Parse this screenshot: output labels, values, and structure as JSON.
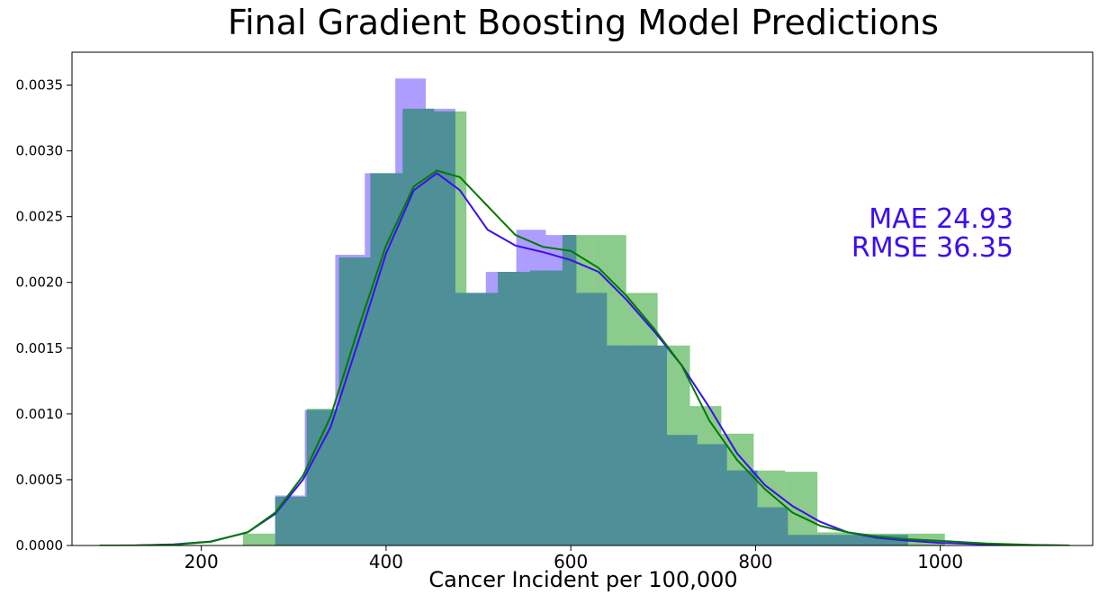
{
  "chart_data": {
    "type": "bar",
    "title": "Final Gradient Boosting Model Predictions",
    "xlabel": "Cancer Incident per 100,000",
    "ylabel": "",
    "xlim": [
      60,
      1165
    ],
    "ylim": [
      0,
      0.00375
    ],
    "x_ticks": [
      200,
      400,
      600,
      800,
      1000
    ],
    "x_tick_labels": [
      "200",
      "400",
      "600",
      "800",
      "1000"
    ],
    "y_ticks": [
      0,
      0.0005,
      0.001,
      0.0015,
      0.002,
      0.0025,
      0.003,
      0.0035
    ],
    "y_tick_labels": [
      "0.0000",
      "0.0005",
      "0.0010",
      "0.0015",
      "0.0020",
      "0.0025",
      "0.0030",
      "0.0035"
    ],
    "grid": false,
    "series": [
      {
        "color": "#6a4cff",
        "bin_edges": [
          280,
          312,
          345,
          377,
          410,
          443,
          475,
          508,
          541,
          573,
          606,
          639,
          671,
          704,
          737,
          769,
          802,
          835,
          867,
          900,
          933,
          965,
          998
        ],
        "values": [
          0.00038,
          0.00103,
          0.00221,
          0.00283,
          0.00355,
          0.00332,
          0.00192,
          0.00208,
          0.0024,
          0.00236,
          0.00192,
          0.00152,
          0.00152,
          0.00084,
          0.00077,
          0.00057,
          0.00029,
          8e-05,
          8e-05,
          8e-05,
          8e-05,
          0.0,
          0.0
        ],
        "kde": [
          [
            90,
            0.0
          ],
          [
            130,
            1e-06
          ],
          [
            170,
            8e-06
          ],
          [
            210,
            3e-05
          ],
          [
            250,
            0.0001
          ],
          [
            280,
            0.00024
          ],
          [
            310,
            0.0005
          ],
          [
            340,
            0.0009
          ],
          [
            370,
            0.00155
          ],
          [
            400,
            0.00222
          ],
          [
            430,
            0.0027
          ],
          [
            455,
            0.00283
          ],
          [
            480,
            0.0027
          ],
          [
            510,
            0.0024
          ],
          [
            540,
            0.00228
          ],
          [
            570,
            0.00223
          ],
          [
            600,
            0.00217
          ],
          [
            630,
            0.00208
          ],
          [
            660,
            0.00187
          ],
          [
            690,
            0.00163
          ],
          [
            720,
            0.00137
          ],
          [
            750,
            0.00105
          ],
          [
            780,
            0.0007
          ],
          [
            810,
            0.00046
          ],
          [
            840,
            0.0003
          ],
          [
            870,
            0.00018
          ],
          [
            900,
            0.0001
          ],
          [
            930,
            6e-05
          ],
          [
            960,
            4e-05
          ],
          [
            1000,
            2e-05
          ],
          [
            1050,
            8e-06
          ],
          [
            1100,
            2e-06
          ],
          [
            1140,
            0.0
          ]
        ]
      },
      {
        "color": "#2ca02c",
        "bin_edges": [
          245,
          280,
          314,
          349,
          383,
          418,
          452,
          487,
          521,
          556,
          591,
          625,
          660,
          694,
          729,
          763,
          798,
          832,
          867,
          902,
          936,
          971,
          1005
        ],
        "values": [
          9e-05,
          0.00037,
          0.00104,
          0.00219,
          0.00283,
          0.00332,
          0.0033,
          0.00192,
          0.00208,
          0.00209,
          0.00236,
          0.00236,
          0.00192,
          0.00152,
          0.00106,
          0.00085,
          0.00057,
          0.00056,
          0.0001,
          9e-05,
          9e-05,
          9e-05,
          0.0
        ],
        "kde": [
          [
            90,
            0.0
          ],
          [
            130,
            1e-06
          ],
          [
            170,
            6e-06
          ],
          [
            210,
            2.8e-05
          ],
          [
            250,
            0.0001
          ],
          [
            280,
            0.00025
          ],
          [
            310,
            0.00053
          ],
          [
            340,
            0.00098
          ],
          [
            370,
            0.00165
          ],
          [
            400,
            0.00228
          ],
          [
            430,
            0.00273
          ],
          [
            455,
            0.00285
          ],
          [
            480,
            0.0028
          ],
          [
            510,
            0.00258
          ],
          [
            540,
            0.00236
          ],
          [
            570,
            0.00227
          ],
          [
            600,
            0.00224
          ],
          [
            630,
            0.00211
          ],
          [
            660,
            0.0019
          ],
          [
            690,
            0.00165
          ],
          [
            720,
            0.00137
          ],
          [
            750,
            0.00095
          ],
          [
            780,
            0.00065
          ],
          [
            810,
            0.00043
          ],
          [
            840,
            0.00025
          ],
          [
            870,
            0.00015
          ],
          [
            900,
            0.0001
          ],
          [
            930,
            7e-05
          ],
          [
            960,
            5e-05
          ],
          [
            1000,
            3.5e-05
          ],
          [
            1050,
            1.5e-05
          ],
          [
            1100,
            4e-06
          ],
          [
            1140,
            0.0
          ]
        ]
      }
    ],
    "overlap_color": "#4e8f98",
    "annotations": [
      {
        "text": "MAE 24.93",
        "color": "#3b0df0"
      },
      {
        "text": "RMSE 36.35",
        "color": "#3b0df0"
      }
    ]
  }
}
